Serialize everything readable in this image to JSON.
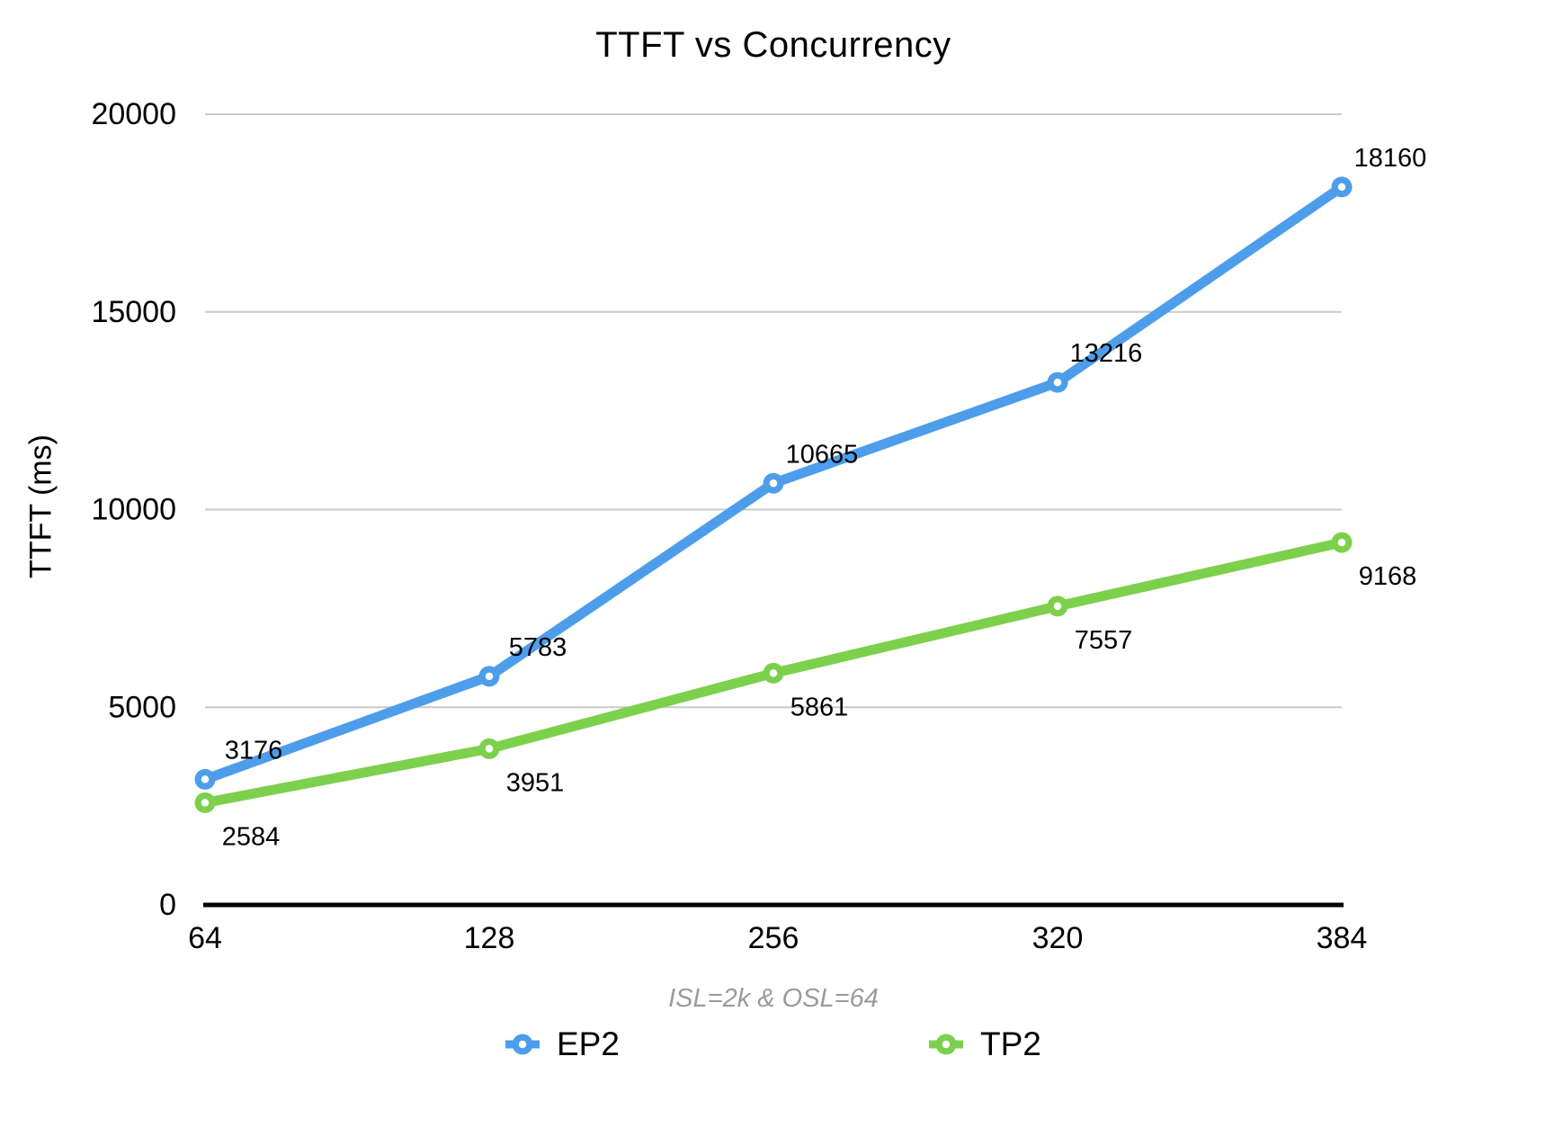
{
  "chart_data": {
    "type": "line",
    "title": "TTFT vs Concurrency",
    "ylabel": "TTFT (ms)",
    "xnote": "ISL=2k & OSL=64",
    "categories": [
      "64",
      "128",
      "256",
      "320",
      "384"
    ],
    "series": [
      {
        "name": "EP2",
        "color": "#4d9deb",
        "values": [
          3176,
          5783,
          10665,
          13216,
          18160
        ],
        "label_position": "above"
      },
      {
        "name": "TP2",
        "color": "#7dd04c",
        "values": [
          2584,
          3951,
          5861,
          7557,
          9168
        ],
        "label_position": "below"
      }
    ],
    "ylim": [
      0,
      20000
    ],
    "yticks": [
      0,
      5000,
      10000,
      15000,
      20000
    ],
    "grid": "horizontal",
    "legend_position": "bottom",
    "colors": {
      "gridline": "#cacaca",
      "axis": "#000000",
      "data_label": "#000000",
      "tick_label": "#000000",
      "subtitle": "#9b9b9b",
      "background": "#ffffff"
    }
  }
}
